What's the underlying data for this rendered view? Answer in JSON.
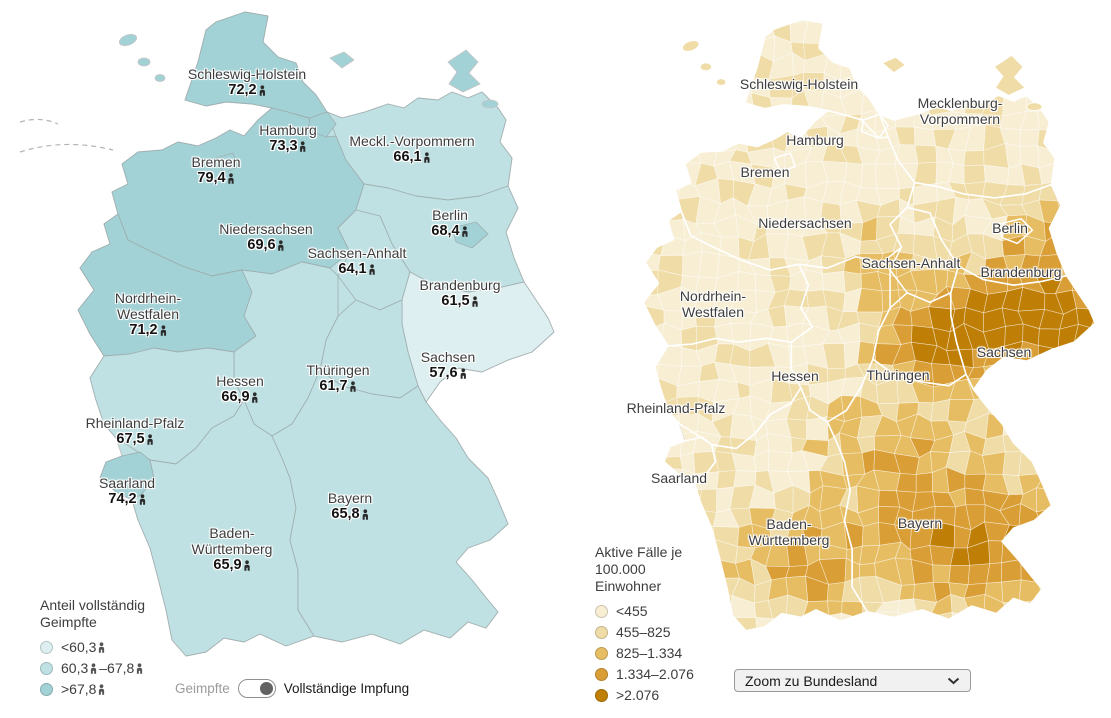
{
  "theme": {
    "background": "#ffffff",
    "teal_scale": [
      "#ddeff0",
      "#c0e1e3",
      "#a3d2d6"
    ],
    "orange_scale": [
      "#f7eed4",
      "#efdca7",
      "#e6bd63",
      "#d99e35",
      "#bf7e06"
    ],
    "state_label_color": "#3d3d3d",
    "value_color": "#141414"
  },
  "left_map": {
    "legend": {
      "title": "Anteil vollständig Geimpfte",
      "items": [
        {
          "label": "<60,3",
          "color": "#ddeff0"
        },
        {
          "label_a": "60,3",
          "label_b": "–67,8",
          "color": "#c0e1e3"
        },
        {
          "label": ">67,8",
          "color": "#a3d2d6"
        }
      ]
    },
    "toggle": {
      "left_label": "Geimpfte",
      "right_label": "Vollständige Impfung"
    },
    "states": [
      {
        "name": "Schleswig-Holstein",
        "value": "72,2"
      },
      {
        "name": "Hamburg",
        "value": "73,3"
      },
      {
        "name": "Bremen",
        "value": "79,4"
      },
      {
        "name": "Meckl.-Vorpommern",
        "value": "66,1"
      },
      {
        "name": "Niedersachsen",
        "value": "69,6"
      },
      {
        "name": "Berlin",
        "value": "68,4"
      },
      {
        "name": "Brandenburg",
        "value": "61,5"
      },
      {
        "name": "Sachsen-Anhalt",
        "value": "64,1"
      },
      {
        "name1": "Nordrhein-",
        "name2": "Westfalen",
        "value": "71,2"
      },
      {
        "name": "Sachsen",
        "value": "57,6"
      },
      {
        "name": "Thüringen",
        "value": "61,7"
      },
      {
        "name": "Hessen",
        "value": "66,9"
      },
      {
        "name": "Rheinland-Pfalz",
        "value": "67,5"
      },
      {
        "name": "Saarland",
        "value": "74,2"
      },
      {
        "name": "Bayern",
        "value": "65,8"
      },
      {
        "name1": "Baden-",
        "name2": "Württemberg",
        "value": "65,9"
      }
    ]
  },
  "right_map": {
    "legend": {
      "title": "Aktive Fälle je 100.000 Einwohner",
      "items": [
        {
          "label": "<455",
          "color": "#f7eed4"
        },
        {
          "label": "455–825",
          "color": "#efdca7"
        },
        {
          "label": "825–1.334",
          "color": "#e6bd63"
        },
        {
          "label": "1.334–2.076",
          "color": "#d99e35"
        },
        {
          "label": ">2.076",
          "color": "#bf7e06"
        }
      ]
    },
    "zoom_select": {
      "value": "Zoom zu Bundesland"
    },
    "states": [
      {
        "name": "Schleswig-Holstein"
      },
      {
        "name1": "Mecklenburg-",
        "name2": "Vorpommern"
      },
      {
        "name": "Hamburg"
      },
      {
        "name": "Bremen"
      },
      {
        "name": "Niedersachsen"
      },
      {
        "name": "Berlin"
      },
      {
        "name": "Sachsen-Anhalt"
      },
      {
        "name": "Brandenburg"
      },
      {
        "name1": "Nordrhein-",
        "name2": "Westfalen"
      },
      {
        "name": "Hessen"
      },
      {
        "name": "Thüringen"
      },
      {
        "name": "Sachsen"
      },
      {
        "name": "Rheinland-Pfalz"
      },
      {
        "name": "Saarland"
      },
      {
        "name1": "Baden-",
        "name2": "Württemberg"
      },
      {
        "name": "Bayern"
      }
    ]
  },
  "chart_data": [
    {
      "type": "choropleth_map",
      "title": "Anteil vollständig Geimpfte",
      "unit": "%",
      "region_level": "Bundesland",
      "legend_breaks": [
        "<60,3",
        "60,3–67,8",
        ">67,8"
      ],
      "values": {
        "Schleswig-Holstein": 72.2,
        "Hamburg": 73.3,
        "Bremen": 79.4,
        "Meckl.-Vorpommern": 66.1,
        "Niedersachsen": 69.6,
        "Berlin": 68.4,
        "Sachsen-Anhalt": 64.1,
        "Brandenburg": 61.5,
        "Nordrhein-Westfalen": 71.2,
        "Sachsen": 57.6,
        "Thüringen": 61.7,
        "Hessen": 66.9,
        "Rheinland-Pfalz": 67.5,
        "Saarland": 74.2,
        "Bayern": 65.8,
        "Baden-Württemberg": 65.9
      }
    },
    {
      "type": "choropleth_map",
      "title": "Aktive Fälle je 100.000 Einwohner",
      "region_level": "Landkreis",
      "legend_breaks": [
        "<455",
        "455–825",
        "825–1.334",
        "1.334–2.076",
        ">2.076"
      ]
    }
  ]
}
